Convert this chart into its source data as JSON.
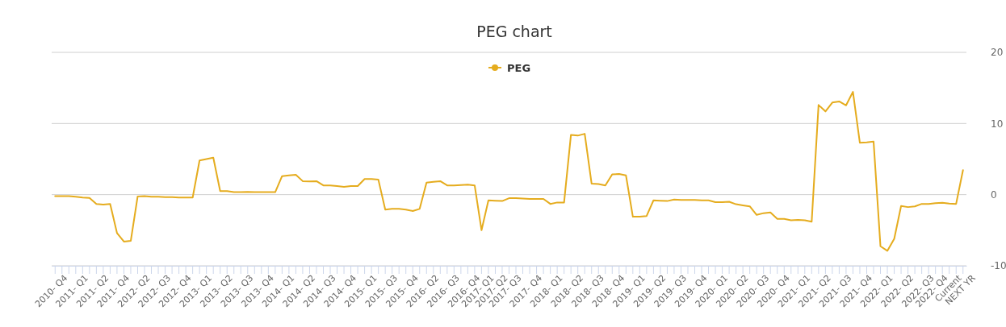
{
  "chart_data": {
    "type": "line",
    "title": "PEG chart",
    "legend": "top",
    "grid": "y",
    "categories": [
      "2010- Q4",
      null,
      null,
      "2011- Q1",
      null,
      null,
      "2011- Q2",
      null,
      null,
      "2011- Q4",
      null,
      null,
      "2012- Q2",
      null,
      null,
      "2012- Q3",
      null,
      null,
      "2012- Q4",
      null,
      null,
      "2013- Q1",
      null,
      null,
      "2013- Q2",
      null,
      null,
      "2013- Q3",
      null,
      null,
      "2013- Q4",
      null,
      null,
      "2014- Q1",
      null,
      null,
      "2014- Q2",
      null,
      null,
      "2014- Q3",
      null,
      null,
      "2014- Q4",
      null,
      null,
      "2015- Q1",
      null,
      null,
      "2015- Q3",
      null,
      null,
      "2015- Q4",
      null,
      null,
      "2016- Q2",
      null,
      null,
      "2016- Q3",
      null,
      null,
      "2016- Q4",
      null,
      "2017- Q1",
      null,
      "2017- Q2",
      null,
      "2017- Q3",
      null,
      null,
      "2017- Q4",
      null,
      null,
      "2018- Q1",
      null,
      null,
      "2018- Q2",
      null,
      null,
      "2018- Q3",
      null,
      null,
      "2018- Q4",
      null,
      null,
      "2019- Q1",
      null,
      null,
      "2019- Q2",
      null,
      null,
      "2019- Q3",
      null,
      null,
      "2019- Q4",
      null,
      null,
      "2020- Q1",
      null,
      null,
      "2020- Q2",
      null,
      null,
      "2020- Q3",
      null,
      null,
      "2020- Q4",
      null,
      null,
      "2021- Q1",
      null,
      null,
      "2021- Q2",
      null,
      null,
      "2021- Q3",
      null,
      null,
      "2021- Q4",
      null,
      null,
      "2022- Q1",
      null,
      null,
      "2022- Q2",
      null,
      null,
      "2022- Q3",
      null,
      "2022- Q4",
      null,
      "Current",
      null,
      "NEXT YR"
    ],
    "series": [
      {
        "name": "PEG",
        "color": "#e5ac1e",
        "values": [
          -0.2,
          -0.2,
          -0.2,
          -0.3,
          -0.4,
          -0.45,
          -1.3,
          -1.4,
          -1.3,
          -5.4,
          -6.6,
          -6.5,
          -0.25,
          -0.2,
          -0.3,
          -0.3,
          -0.35,
          -0.35,
          -0.4,
          -0.4,
          -0.4,
          4.8,
          5.0,
          5.2,
          0.5,
          0.5,
          0.35,
          0.35,
          0.4,
          0.35,
          0.35,
          0.35,
          0.35,
          2.6,
          2.7,
          2.8,
          1.9,
          1.85,
          1.9,
          1.3,
          1.3,
          1.2,
          1.1,
          1.2,
          1.2,
          2.2,
          2.2,
          2.1,
          -2.1,
          -2.0,
          -2.0,
          -2.1,
          -2.3,
          -2.0,
          1.7,
          1.8,
          1.9,
          1.3,
          1.3,
          1.35,
          1.4,
          1.3,
          -5.0,
          -0.8,
          -0.85,
          -0.9,
          -0.5,
          -0.5,
          -0.55,
          -0.6,
          -0.6,
          -0.6,
          -1.3,
          -1.1,
          -1.1,
          8.4,
          8.3,
          8.55,
          1.55,
          1.5,
          1.3,
          2.85,
          2.9,
          2.7,
          -3.1,
          -3.1,
          -3.0,
          -0.8,
          -0.85,
          -0.9,
          -0.7,
          -0.75,
          -0.75,
          -0.75,
          -0.8,
          -0.8,
          -1.05,
          -1.05,
          -1.0,
          -1.35,
          -1.5,
          -1.65,
          -2.85,
          -2.6,
          -2.5,
          -3.4,
          -3.4,
          -3.6,
          -3.55,
          -3.6,
          -3.8,
          12.6,
          11.7,
          12.95,
          13.1,
          12.55,
          14.45,
          7.3,
          7.35,
          7.45,
          -7.25,
          -7.9,
          -6.2,
          -1.6,
          -1.75,
          -1.65,
          -1.3,
          -1.3,
          -1.2,
          -1.15,
          -1.25,
          -1.3,
          3.45
        ]
      }
    ],
    "ylim": [
      -10,
      20
    ],
    "yticks": [
      -10,
      0,
      10,
      20
    ]
  }
}
